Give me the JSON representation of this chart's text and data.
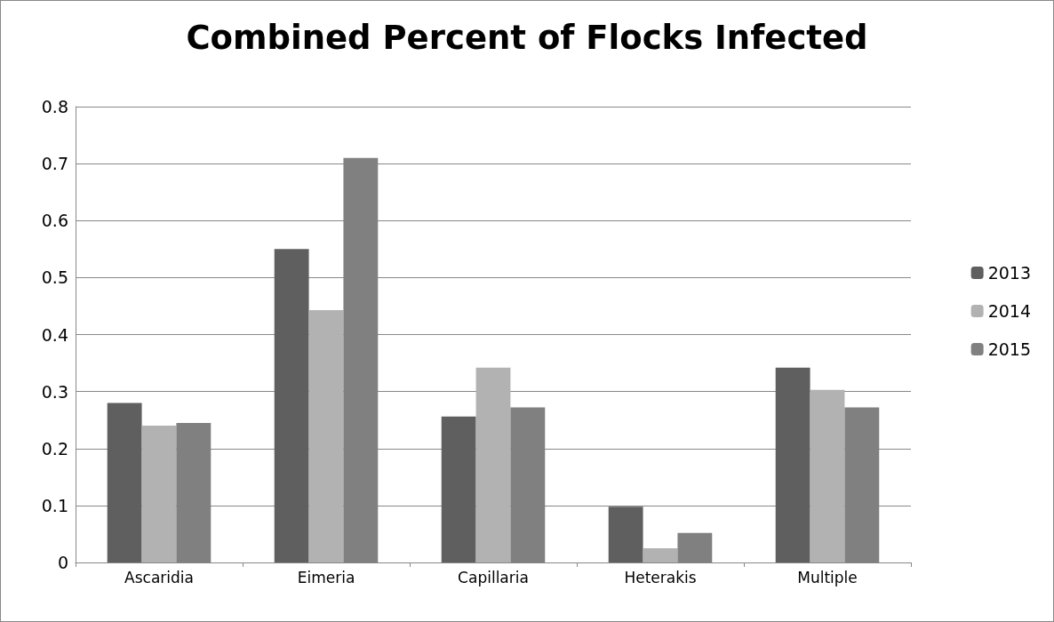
{
  "chart_data": {
    "type": "bar",
    "title": "Combined Percent of Flocks Infected",
    "categories": [
      "Ascaridia",
      "Eimeria",
      "Capillaria",
      "Heterakis",
      "Multiple"
    ],
    "series": [
      {
        "name": "2013",
        "color": "#5f5f5f",
        "values": [
          0.28,
          0.55,
          0.256,
          0.098,
          0.342
        ]
      },
      {
        "name": "2014",
        "color": "#b2b2b2",
        "values": [
          0.24,
          0.443,
          0.342,
          0.025,
          0.303
        ]
      },
      {
        "name": "2015",
        "color": "#808080",
        "values": [
          0.245,
          0.71,
          0.272,
          0.052,
          0.272
        ]
      }
    ],
    "ylim": [
      0,
      0.8
    ],
    "yticks": [
      0,
      0.1,
      0.2,
      0.3,
      0.4,
      0.5,
      0.6,
      0.7,
      0.8
    ],
    "grid": "y",
    "legend": "right"
  }
}
